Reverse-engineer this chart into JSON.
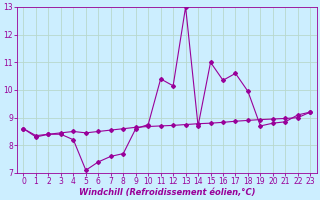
{
  "x": [
    0,
    1,
    2,
    3,
    4,
    5,
    6,
    7,
    8,
    9,
    10,
    11,
    12,
    13,
    14,
    15,
    16,
    17,
    18,
    19,
    20,
    21,
    22,
    23
  ],
  "line1_y": [
    8.6,
    8.3,
    8.4,
    8.4,
    8.2,
    7.1,
    7.4,
    7.6,
    7.7,
    8.6,
    8.75,
    10.4,
    10.15,
    13.0,
    8.7,
    11.0,
    10.35,
    10.6,
    9.95,
    8.7,
    8.8,
    8.85,
    9.1,
    9.2
  ],
  "line2_y": [
    8.6,
    8.35,
    8.4,
    8.45,
    8.5,
    8.45,
    8.5,
    8.55,
    8.6,
    8.65,
    8.68,
    8.7,
    8.72,
    8.75,
    8.78,
    8.8,
    8.83,
    8.87,
    8.9,
    8.93,
    8.95,
    8.97,
    9.0,
    9.2
  ],
  "xlabel": "Windchill (Refroidissement éolien,°C)",
  "xlim_min": -0.5,
  "xlim_max": 23.5,
  "ylim_min": 7.0,
  "ylim_max": 13.0,
  "yticks": [
    7,
    8,
    9,
    10,
    11,
    12,
    13
  ],
  "xticks": [
    0,
    1,
    2,
    3,
    4,
    5,
    6,
    7,
    8,
    9,
    10,
    11,
    12,
    13,
    14,
    15,
    16,
    17,
    18,
    19,
    20,
    21,
    22,
    23
  ],
  "line_color": "#990099",
  "bg_color": "#cceeff",
  "grid_color": "#aaddcc",
  "marker": "D",
  "marker_size": 2.0,
  "line_width": 0.8,
  "xlabel_fontsize": 6.0,
  "tick_fontsize": 5.5
}
